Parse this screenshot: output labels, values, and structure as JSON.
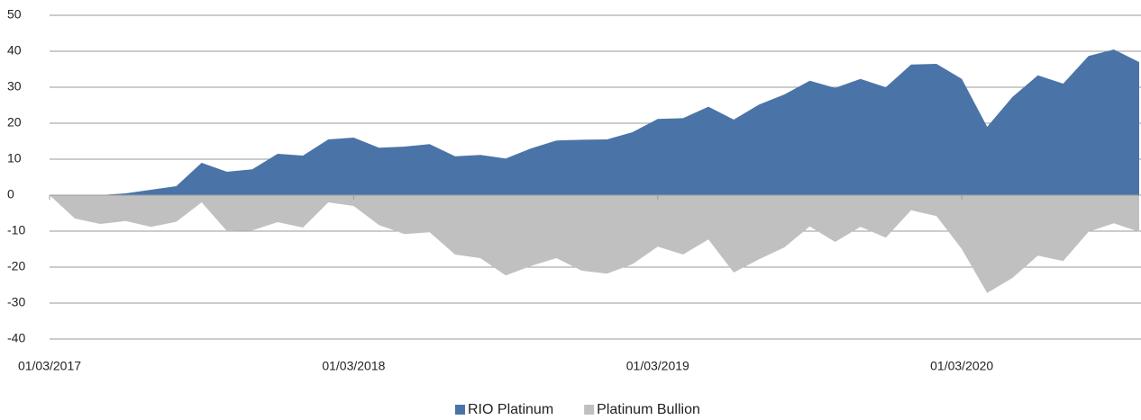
{
  "chart_data": {
    "type": "area",
    "categories": [
      "01/03/2017",
      null,
      null,
      null,
      null,
      null,
      null,
      null,
      null,
      null,
      null,
      null,
      "01/03/2018",
      null,
      null,
      null,
      null,
      null,
      null,
      null,
      null,
      null,
      null,
      null,
      "01/03/2019",
      null,
      null,
      null,
      null,
      null,
      null,
      null,
      null,
      null,
      null,
      null,
      "01/03/2020",
      null,
      null,
      null,
      null,
      null,
      null,
      null
    ],
    "series": [
      {
        "name": "RIO Platinum",
        "color": "#4a74a8",
        "values": [
          0,
          0,
          0,
          0.5,
          1.5,
          2.5,
          9,
          6.5,
          7.2,
          11.5,
          11,
          15.5,
          16,
          13.2,
          13.5,
          14.2,
          10.8,
          11.2,
          10.2,
          13,
          15.2,
          15.4,
          15.5,
          17.5,
          21.2,
          21.4,
          24.6,
          21,
          25.2,
          28,
          31.8,
          29.8,
          32.3,
          30,
          36.3,
          36.5,
          32.3,
          19,
          27.3,
          33.3,
          31,
          38.7,
          40.5,
          37
        ]
      },
      {
        "name": "Platinum Bullion",
        "color": "#c0c0c0",
        "values": [
          0,
          -6.5,
          -8,
          -7.2,
          -8.8,
          -7.4,
          -2,
          -10,
          -9.8,
          -7.5,
          -9,
          -2,
          -3,
          -8.3,
          -10.8,
          -10.3,
          -16.5,
          -17.5,
          -22.3,
          -19.7,
          -17.5,
          -21,
          -21.8,
          -19.2,
          -14.3,
          -16.5,
          -12.3,
          -21.5,
          -17.8,
          -14.5,
          -8.7,
          -13,
          -8.8,
          -11.8,
          -4.2,
          -5.8,
          -15,
          -27.2,
          -23,
          -16.8,
          -18.3,
          -10.2,
          -7.8,
          -10.2
        ]
      }
    ],
    "ylim": [
      -40,
      50
    ],
    "yticks": [
      -40,
      -30,
      -20,
      -10,
      0,
      10,
      20,
      30,
      40,
      50
    ],
    "grid": true,
    "legend": "bottom"
  }
}
